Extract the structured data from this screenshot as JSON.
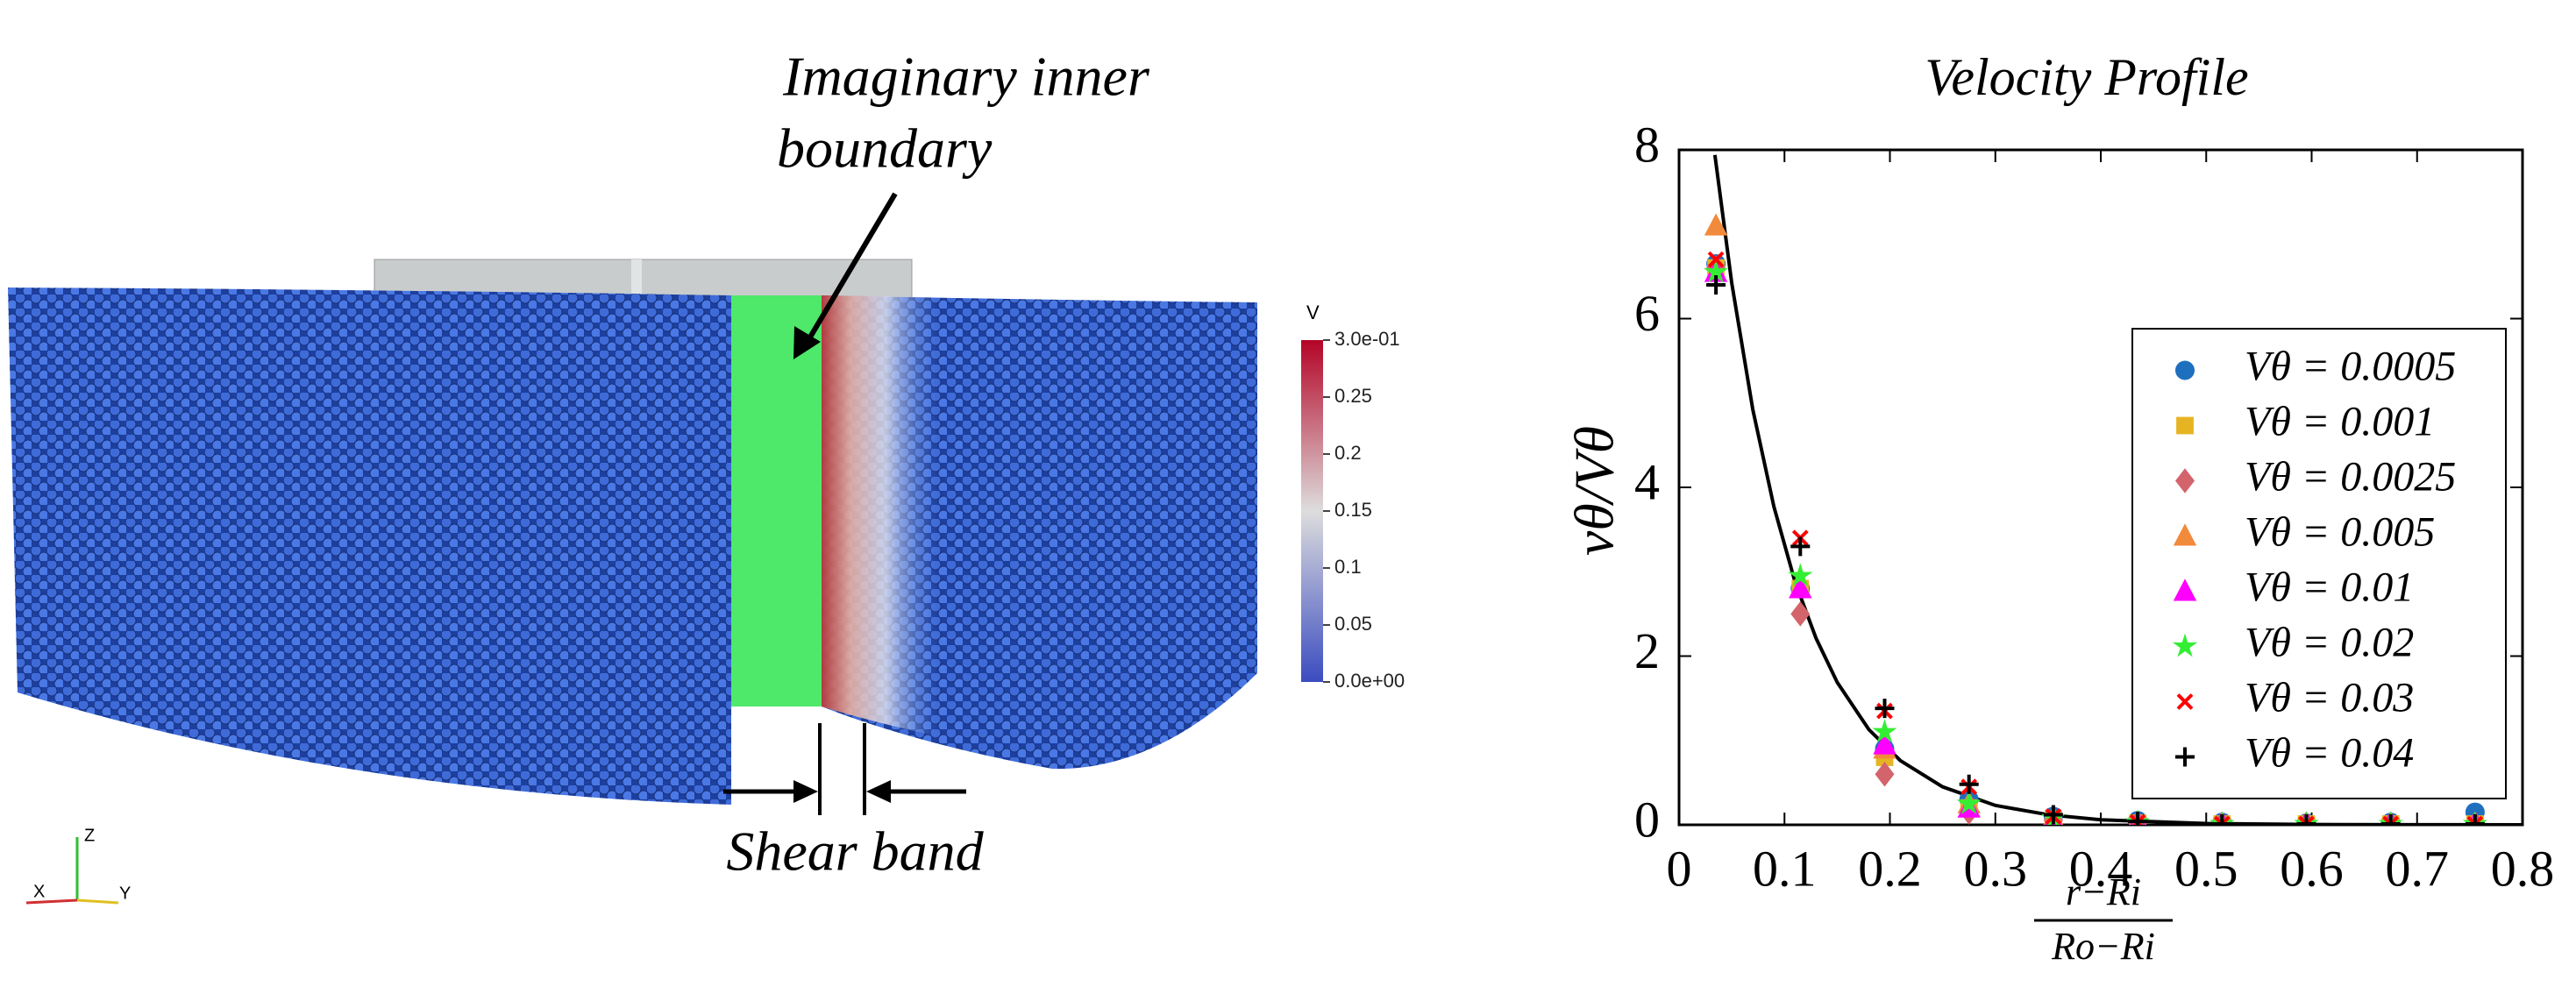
{
  "figure": {
    "annotations": {
      "boundary_line1": "Imaginary inner",
      "boundary_line2": "boundary",
      "shear_band": "Shear band"
    },
    "colorbar": {
      "title": "V",
      "lim": [
        0,
        0.3
      ],
      "ticks": [
        {
          "value": 0.3,
          "label": "3.0e-01"
        },
        0.25,
        0.2,
        0.15,
        0.1,
        0.05,
        {
          "value": 0,
          "label": "0.0e+00"
        }
      ]
    },
    "axes_triad": {
      "x": "X",
      "y": "Y",
      "z": "Z"
    }
  },
  "chart_data": {
    "type": "scatter",
    "title": "Velocity Profile",
    "y_label": "vθ/Vθ",
    "x_label_numerator": "r−Ri",
    "x_label_denominator": "Ro−Ri",
    "xlim": [
      0,
      0.8
    ],
    "xticks": [
      0,
      0.1,
      0.2,
      0.3,
      0.4,
      0.5,
      0.6,
      0.7,
      0.8
    ],
    "ylim": [
      0,
      8
    ],
    "yticks": [
      0,
      2,
      4,
      6,
      8
    ],
    "legend": "upper right",
    "x": [
      0.035,
      0.115,
      0.195,
      0.275,
      0.355,
      0.435,
      0.515,
      0.595,
      0.675,
      0.755
    ],
    "series": [
      {
        "name": "Vθ = 0.0005",
        "color": "#1f6fbf",
        "marker": "circle",
        "values": [
          6.65,
          2.8,
          0.9,
          0.3,
          0.1,
          0.05,
          0.03,
          0.02,
          0.03,
          0.15
        ]
      },
      {
        "name": "Vθ = 0.001",
        "color": "#e6b422",
        "marker": "square",
        "values": [
          6.6,
          2.8,
          0.8,
          0.2,
          0.05,
          0.02,
          0.01,
          0.01,
          0.01,
          0.01
        ]
      },
      {
        "name": "Vθ = 0.0025",
        "color": "#d4646c",
        "marker": "diamond",
        "values": [
          6.6,
          2.5,
          0.6,
          0.15,
          0.05,
          0.02,
          0.01,
          0.01,
          0.01,
          0.01
        ]
      },
      {
        "name": "Vθ = 0.005",
        "color": "#f28a3c",
        "marker": "triangle",
        "values": [
          7.1,
          2.8,
          0.9,
          0.25,
          0.08,
          0.03,
          0.01,
          0.01,
          0.01,
          0.01
        ]
      },
      {
        "name": "Vθ = 0.01",
        "color": "#ff00ff",
        "marker": "triangle",
        "values": [
          6.55,
          2.8,
          0.95,
          0.2,
          0.05,
          0.02,
          0.01,
          0.01,
          0.01,
          0.01
        ]
      },
      {
        "name": "Vθ = 0.02",
        "color": "#33ee33",
        "marker": "star",
        "values": [
          6.55,
          2.95,
          1.1,
          0.25,
          0.08,
          0.03,
          0.01,
          0.01,
          0.01,
          0.01
        ]
      },
      {
        "name": "Vθ = 0.03",
        "color": "#ff0000",
        "marker": "x",
        "values": [
          6.7,
          3.4,
          1.35,
          0.45,
          0.1,
          0.03,
          0.01,
          0.01,
          0.01,
          0.01
        ]
      },
      {
        "name": "Vθ = 0.04",
        "color": "#000000",
        "marker": "plus",
        "values": [
          6.4,
          3.3,
          1.38,
          0.48,
          0.12,
          0.04,
          0.01,
          0.01,
          0.01,
          0.01
        ]
      }
    ],
    "fit": {
      "color": "#000000",
      "x": [
        0.034,
        0.05,
        0.07,
        0.09,
        0.11,
        0.13,
        0.15,
        0.18,
        0.21,
        0.25,
        0.3,
        0.35,
        0.4,
        0.5,
        0.6,
        0.7,
        0.8
      ],
      "values": [
        7.94,
        6.42,
        4.92,
        3.77,
        2.88,
        2.21,
        1.69,
        1.13,
        0.76,
        0.45,
        0.23,
        0.12,
        0.06,
        0.016,
        0.004,
        0.001,
        0.0
      ]
    }
  }
}
